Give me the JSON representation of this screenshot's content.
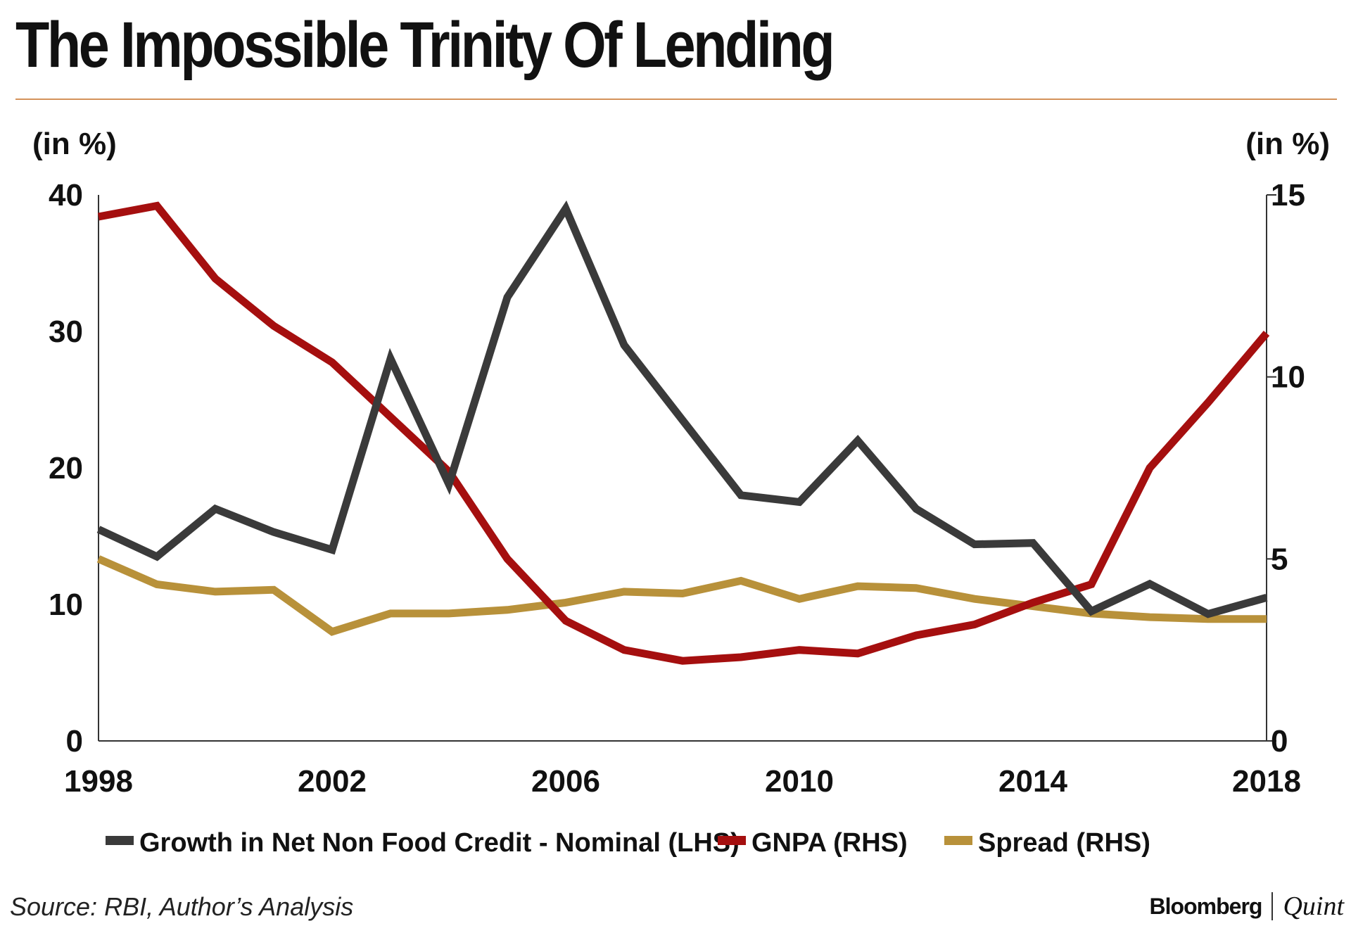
{
  "title": "The Impossible Trinity Of Lending",
  "source": "Source: RBI, Author’s Analysis",
  "brand": {
    "primary": "Bloomberg",
    "secondary": "Quint"
  },
  "colors": {
    "credit": "#3a3a3a",
    "gnpa": "#a50f0f",
    "spread": "#b8913a",
    "rule": "#d4925a",
    "axis": "#333333"
  },
  "chart_data": {
    "type": "line",
    "title": "The Impossible Trinity Of Lending",
    "x": [
      1998,
      1999,
      2000,
      2001,
      2002,
      2003,
      2004,
      2005,
      2006,
      2007,
      2008,
      2009,
      2010,
      2011,
      2012,
      2013,
      2014,
      2015,
      2016,
      2017,
      2018
    ],
    "xlim": [
      1998,
      2018
    ],
    "x_ticks": [
      "1998",
      "2002",
      "2006",
      "2010",
      "2014",
      "2018"
    ],
    "y_left": {
      "label": "(in %)",
      "lim": [
        0,
        40
      ],
      "ticks": [
        "0",
        "10",
        "20",
        "30",
        "40"
      ]
    },
    "y_right": {
      "label": "(in %)",
      "lim": [
        0,
        15
      ],
      "ticks": [
        "0",
        "5",
        "10",
        "15"
      ]
    },
    "series": [
      {
        "name": "Growth in Net Non Food Credit - Nominal (LHS)",
        "axis": "left",
        "values": [
          15.5,
          13.5,
          17.0,
          15.3,
          14.0,
          28.0,
          18.8,
          32.5,
          39.0,
          29.0,
          23.5,
          18.0,
          17.5,
          22.0,
          17.0,
          14.4,
          14.5,
          9.5,
          11.5,
          9.3,
          10.5
        ]
      },
      {
        "name": "GNPA (RHS)",
        "axis": "right",
        "values": [
          14.4,
          14.7,
          12.7,
          11.4,
          10.4,
          8.9,
          7.4,
          5.0,
          3.3,
          2.5,
          2.2,
          2.3,
          2.5,
          2.4,
          2.9,
          3.2,
          3.8,
          4.3,
          7.5,
          9.3,
          11.2
        ]
      },
      {
        "name": "Spread (RHS)",
        "axis": "right",
        "values": [
          5.0,
          4.3,
          4.1,
          4.15,
          3.0,
          3.5,
          3.5,
          3.6,
          3.8,
          4.1,
          4.05,
          4.4,
          3.9,
          4.25,
          4.2,
          3.9,
          3.7,
          3.5,
          3.4,
          3.35,
          3.35
        ]
      }
    ],
    "legend_position": "bottom"
  }
}
